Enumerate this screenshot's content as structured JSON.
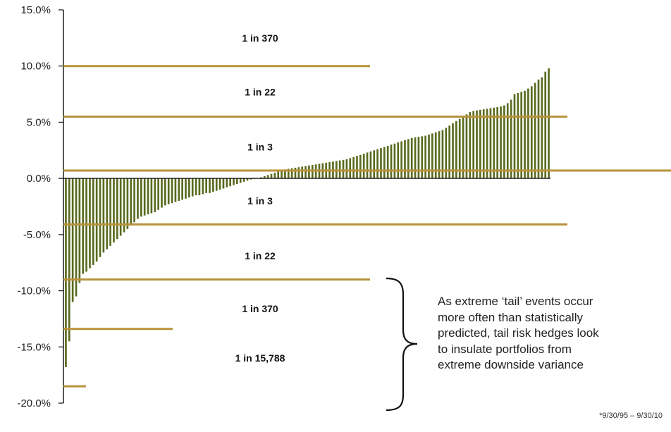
{
  "chart_data": {
    "type": "bar",
    "ylim": [
      -20,
      15
    ],
    "y_ticks": [
      "15.0%",
      "10.0%",
      "5.0%",
      "0.0%",
      "-5.0%",
      "-10.0%",
      "-15.0%",
      "-20.0%"
    ],
    "y_tick_values": [
      15,
      10,
      5,
      0,
      -5,
      -10,
      -15,
      -20
    ],
    "bar_color": "#5a6b1f",
    "line_color": "#b8923a",
    "series": [
      {
        "values": [
          -16.8,
          -14.5,
          -11.0,
          -10.5,
          -9.3,
          -8.5,
          -8.3,
          -8.0,
          -7.7,
          -7.4,
          -7.0,
          -6.6,
          -6.3,
          -6.0,
          -5.7,
          -5.4,
          -5.1,
          -4.8,
          -4.5,
          -4.2,
          -3.9,
          -3.6,
          -3.4,
          -3.3,
          -3.2,
          -3.1,
          -3.0,
          -2.8,
          -2.6,
          -2.4,
          -2.3,
          -2.2,
          -2.1,
          -2.0,
          -1.9,
          -1.8,
          -1.7,
          -1.6,
          -1.5,
          -1.5,
          -1.4,
          -1.3,
          -1.3,
          -1.2,
          -1.1,
          -1.0,
          -0.9,
          -0.8,
          -0.7,
          -0.6,
          -0.5,
          -0.4,
          -0.3,
          -0.2,
          -0.1,
          -0.05,
          0.05,
          0.1,
          0.2,
          0.3,
          0.4,
          0.5,
          0.6,
          0.7,
          0.8,
          0.85,
          0.9,
          0.95,
          1.0,
          1.05,
          1.1,
          1.15,
          1.2,
          1.25,
          1.3,
          1.35,
          1.4,
          1.45,
          1.5,
          1.55,
          1.6,
          1.65,
          1.7,
          1.8,
          1.9,
          2.0,
          2.1,
          2.2,
          2.3,
          2.4,
          2.5,
          2.6,
          2.7,
          2.8,
          2.9,
          3.0,
          3.1,
          3.2,
          3.3,
          3.4,
          3.5,
          3.6,
          3.65,
          3.7,
          3.75,
          3.8,
          3.9,
          4.0,
          4.1,
          4.2,
          4.3,
          4.5,
          4.7,
          4.9,
          5.1,
          5.3,
          5.5,
          5.7,
          5.9,
          6.0,
          6.05,
          6.1,
          6.15,
          6.2,
          6.25,
          6.3,
          6.35,
          6.4,
          6.5,
          6.7,
          7.0,
          7.5,
          7.6,
          7.7,
          7.8,
          8.0,
          8.2,
          8.5,
          8.8,
          9.0,
          9.5,
          9.8
        ]
      }
    ],
    "horizontal_lines": [
      {
        "y": 10.0,
        "x_end": "mid"
      },
      {
        "y": 5.5,
        "x_end": "right"
      },
      {
        "y": 0.7,
        "x_end": "full"
      },
      {
        "y": -4.1,
        "x_end": "right"
      },
      {
        "y": -9.0,
        "x_end": "mid"
      },
      {
        "y": -13.4,
        "x_end": "short"
      },
      {
        "y": -18.5,
        "x_end": "tiny"
      }
    ],
    "band_labels": [
      {
        "text": "1 in 370",
        "y": 12.5
      },
      {
        "text": "1 in 22",
        "y": 7.7
      },
      {
        "text": "1 in 3",
        "y": 2.8
      },
      {
        "text": "1 in 3",
        "y": -2.0
      },
      {
        "text": "1 in 22",
        "y": -6.9
      },
      {
        "text": "1 in 370",
        "y": -11.6
      },
      {
        "text": "1 in 15,788",
        "y": -16.0
      }
    ]
  },
  "annotation": {
    "lines": [
      "As extreme ‘tail’ events occur",
      "more often than statistically",
      "predicted, tail risk hedges look",
      "to insulate portfolios from",
      "extreme downside variance"
    ]
  },
  "footnote": "*9/30/95 – 9/30/10"
}
